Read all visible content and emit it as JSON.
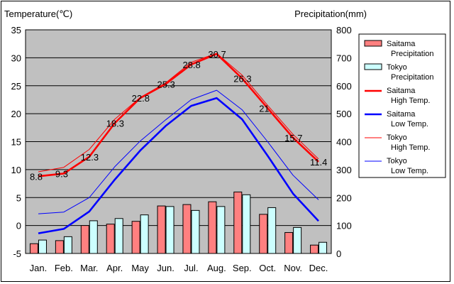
{
  "chart_data": {
    "type": "bar+line",
    "left_axis_title": "Temperature(℃)",
    "right_axis_title": "Precipitation(mm)",
    "categories": [
      "Jan.",
      "Feb.",
      "Mar.",
      "Apr.",
      "May",
      "Jun.",
      "Jul.",
      "Aug.",
      "Sep.",
      "Oct.",
      "Nov.",
      "Dec."
    ],
    "temperature_axis": {
      "min": -5,
      "max": 35,
      "step": 5,
      "ticks": [
        "35",
        "30",
        "25",
        "20",
        "15",
        "10",
        "5",
        "0",
        "-5"
      ]
    },
    "precipitation_axis": {
      "min": 0,
      "max": 800,
      "step": 100,
      "ticks": [
        "800",
        "700",
        "600",
        "500",
        "400",
        "300",
        "200",
        "100",
        "0"
      ]
    },
    "grid": "horizontal",
    "plot_background": "#c0c0c0",
    "bar_series": [
      {
        "name": "Saitama Precipitation",
        "legend_lines": [
          "Saitama",
          "Precipitation"
        ],
        "color": "#ff8080",
        "values": [
          35,
          46,
          100,
          105,
          115,
          170,
          175,
          185,
          220,
          140,
          75,
          30
        ]
      },
      {
        "name": "Tokyo Precipitation",
        "legend_lines": [
          "Tokyo",
          "Precipitation"
        ],
        "color": "#ccffff",
        "values": [
          48,
          60,
          117,
          125,
          138,
          168,
          154,
          168,
          210,
          164,
          93,
          40
        ]
      }
    ],
    "line_series": [
      {
        "name": "Saitama High Temp.",
        "legend_lines": [
          "Saitama",
          "High Temp."
        ],
        "color": "#ff0000",
        "weight": "thick",
        "values": [
          8.8,
          9.3,
          12.3,
          18.3,
          22.8,
          25.3,
          28.8,
          30.7,
          26.3,
          21,
          15.7,
          11.4
        ],
        "labels": [
          "8.8",
          "9.3",
          "12.3",
          "18.3",
          "22.8",
          "25.3",
          "28.8",
          "30.7",
          "26.3",
          "21",
          "15.7",
          "11.4"
        ]
      },
      {
        "name": "Saitama Low Temp.",
        "legend_lines": [
          "Saitama",
          "Low Temp."
        ],
        "color": "#0000ff",
        "weight": "thick",
        "values": [
          -1.4,
          -0.6,
          2.5,
          8.2,
          13.4,
          17.8,
          21.4,
          22.8,
          19.0,
          12.5,
          5.7,
          0.8
        ]
      },
      {
        "name": "Tokyo High Temp.",
        "legend_lines": [
          "Tokyo",
          "High Temp."
        ],
        "color": "#ff0000",
        "weight": "thin",
        "values": [
          9.6,
          10.4,
          13.6,
          19.0,
          22.9,
          25.5,
          29.2,
          30.8,
          26.9,
          21.5,
          16.3,
          11.9
        ]
      },
      {
        "name": "Tokyo Low Temp.",
        "legend_lines": [
          "Tokyo",
          "Low Temp."
        ],
        "color": "#0000ff",
        "weight": "thin",
        "values": [
          2.1,
          2.4,
          5.0,
          10.5,
          15.1,
          18.9,
          22.5,
          24.2,
          20.7,
          15.0,
          9.0,
          4.6
        ]
      }
    ]
  }
}
